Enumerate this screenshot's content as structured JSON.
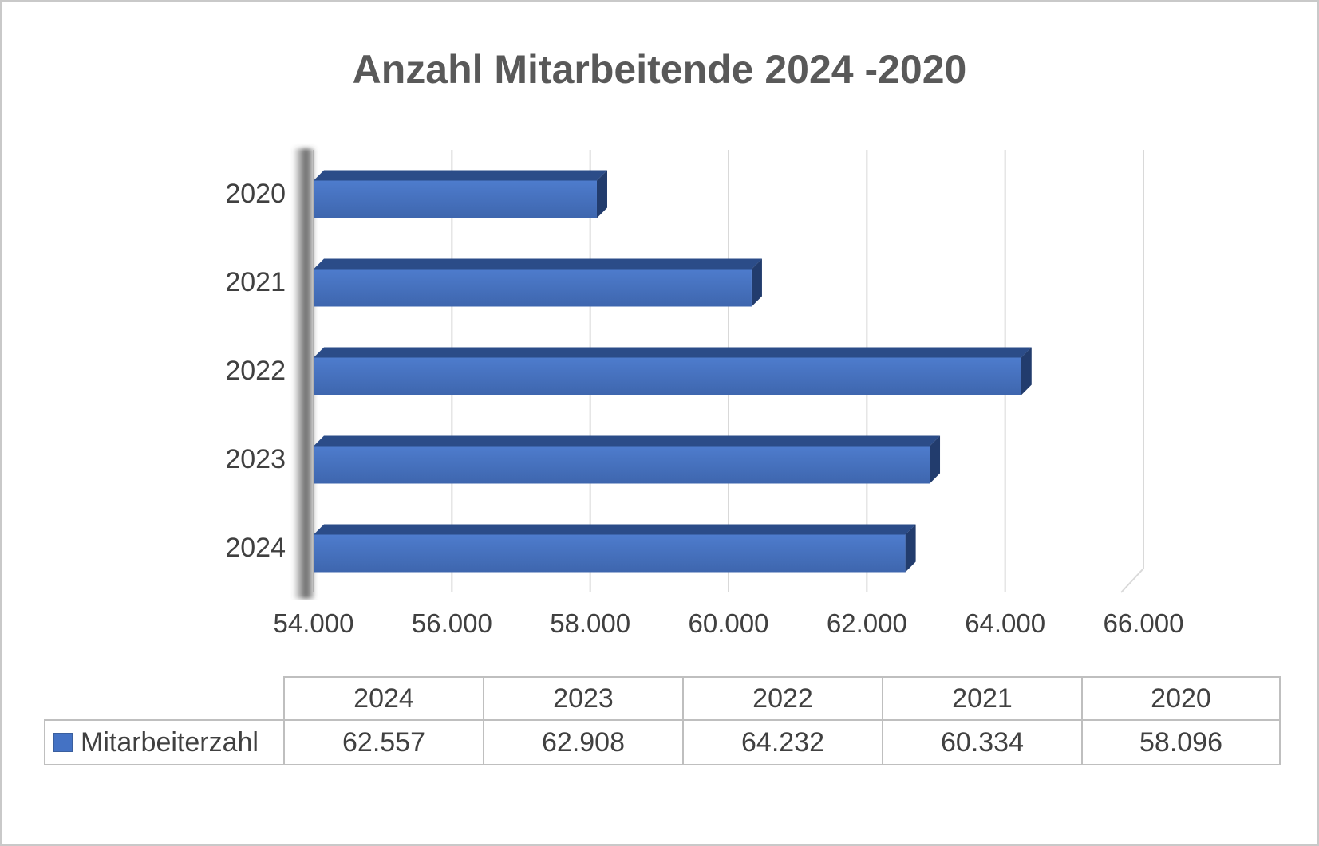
{
  "title": "Anzahl Mitarbeitende 2024 -2020",
  "chart_data": {
    "type": "bar",
    "orientation": "horizontal",
    "title": "Anzahl Mitarbeitende 2024 -2020",
    "categories": [
      "2020",
      "2021",
      "2022",
      "2023",
      "2024"
    ],
    "series": [
      {
        "name": "Mitarbeiterzahl",
        "values": [
          58096,
          60334,
          64232,
          62908,
          62557
        ]
      }
    ],
    "xlim": [
      54000,
      66000
    ],
    "x_tick_step": 2000,
    "x_tick_labels": [
      "54.000",
      "56.000",
      "58.000",
      "60.000",
      "62.000",
      "64.000",
      "66.000"
    ],
    "grid": true,
    "style": "3d-excel",
    "legend_position": "bottom-table"
  },
  "table": {
    "columns": [
      "2024",
      "2023",
      "2022",
      "2021",
      "2020"
    ],
    "rows": [
      {
        "label": "Mitarbeiterzahl",
        "values": [
          "62.557",
          "62.908",
          "64.232",
          "60.334",
          "58.096"
        ]
      }
    ]
  },
  "colors": {
    "bar": "#4472C4",
    "bar_top_face": "#2B4C88",
    "bar_side_face": "#223C6D",
    "gridline": "#D9D9D9",
    "title_text": "#595959",
    "axis_text": "#404040",
    "table_border": "#BFBFBF"
  }
}
